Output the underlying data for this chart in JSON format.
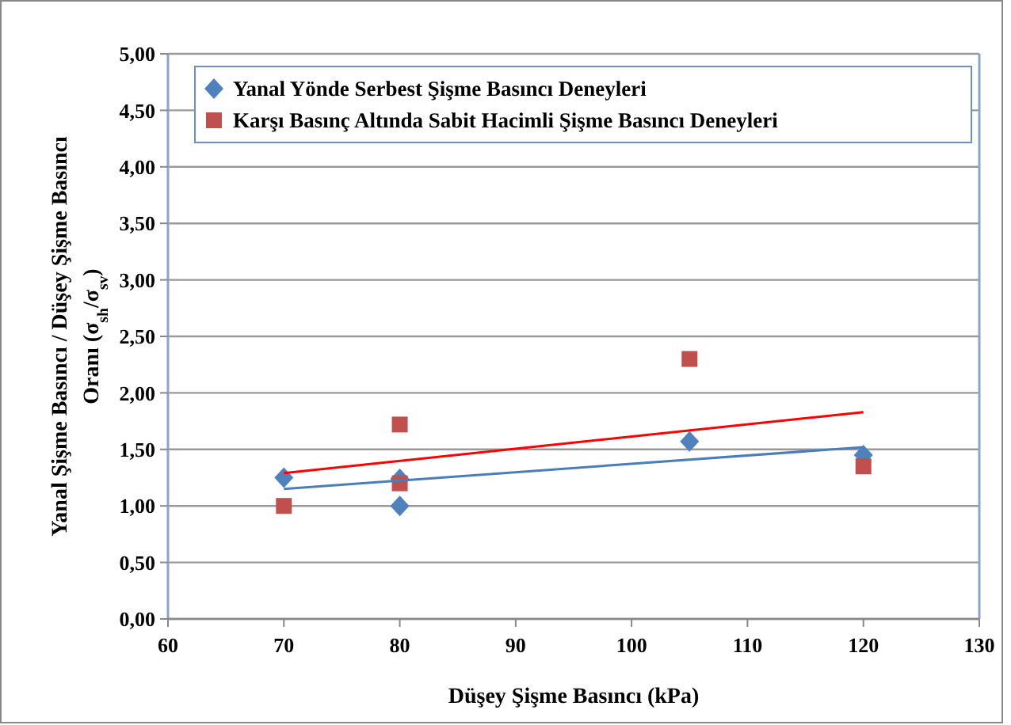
{
  "chart_data": {
    "type": "scatter",
    "xlabel": "Düşey Şişme Basıncı  (kPa)",
    "ylabel": [
      "Yanal Şişme Basıncı / Düşey Şişme Basıncı",
      "Oranı   (σ$_{sh}$/σ$_{sv}$)"
    ],
    "xlim": [
      60,
      130
    ],
    "xticks": [
      60,
      70,
      80,
      90,
      100,
      110,
      120,
      130
    ],
    "ylim": [
      0,
      5
    ],
    "yticks": [
      {
        "value": 0,
        "label": "0,00"
      },
      {
        "value": 0.5,
        "label": "0,50"
      },
      {
        "value": 1,
        "label": "1,00"
      },
      {
        "value": 1.5,
        "label": "1,50"
      },
      {
        "value": 2,
        "label": "2,00"
      },
      {
        "value": 2.5,
        "label": "2,50"
      },
      {
        "value": 3,
        "label": "3,00"
      },
      {
        "value": 3.5,
        "label": "3,50"
      },
      {
        "value": 4,
        "label": "4,00"
      },
      {
        "value": 4.5,
        "label": "4,50"
      },
      {
        "value": 5,
        "label": "5,00"
      }
    ],
    "grid": "y",
    "legend": "top",
    "series": [
      {
        "name": "Yanal Yönde Serbest Şişme Basıncı Deneyleri",
        "color": "#4f81bd",
        "marker": "diamond",
        "x": [
          70,
          80,
          80,
          105,
          120
        ],
        "values": [
          1.25,
          1.24,
          1.0,
          1.57,
          1.45
        ]
      },
      {
        "name": "Karşı Basınç Altında Sabit Hacimli Şişme Basıncı Deneyleri",
        "color": "#c0504d",
        "marker": "square",
        "x": [
          70,
          80,
          80,
          105,
          120
        ],
        "values": [
          1.0,
          1.72,
          1.2,
          2.3,
          1.35
        ]
      },
      {
        "type": "line",
        "color": "#4a7ebb",
        "marker": "none",
        "x": [
          70,
          120
        ],
        "values": [
          1.15,
          1.52
        ]
      },
      {
        "type": "line",
        "color": "#ff0000",
        "marker": "none",
        "x": [
          70,
          120
        ],
        "values": [
          1.29,
          1.83
        ]
      }
    ]
  }
}
